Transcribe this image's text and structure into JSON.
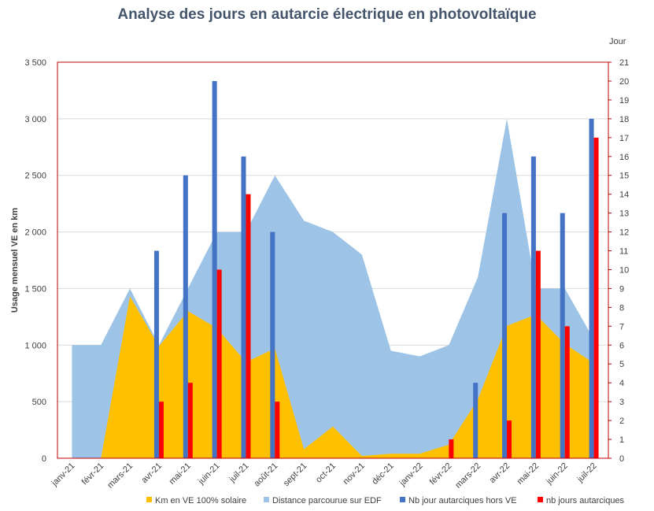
{
  "chart_data": {
    "type": "bar",
    "title": "Analyse des jours  en autarcie électrique  en photovoltaïque",
    "ylabel": "Usage  mensuel VE en km",
    "y2label": "Jour",
    "ylim": [
      0,
      3500
    ],
    "y2lim": [
      0,
      21
    ],
    "yticks": [
      "0",
      "500",
      "1 000",
      "1 500",
      "2 000",
      "2 500",
      "3 000",
      "3 500"
    ],
    "y2ticks": [
      "0",
      "1",
      "2",
      "3",
      "4",
      "5",
      "6",
      "7",
      "8",
      "9",
      "10",
      "11",
      "12",
      "13",
      "14",
      "15",
      "16",
      "17",
      "18",
      "19",
      "20",
      "21"
    ],
    "categories": [
      "janv-21",
      "févr-21",
      "mars-21",
      "avr-21",
      "mai-21",
      "juin-21",
      "juil-21",
      "août-21",
      "sept-21",
      "oct-21",
      "nov-21",
      "déc-21",
      "janv-22",
      "févr-22",
      "mars-22",
      "avr-22",
      "mai-22",
      "juin-22",
      "juil-22"
    ],
    "series": [
      {
        "name": "Km en VE 100% solaire",
        "kind": "area",
        "axis": "left",
        "color": "#ffc000",
        "values": [
          0,
          0,
          1430,
          990,
          1300,
          1150,
          850,
          970,
          80,
          280,
          20,
          40,
          40,
          120,
          520,
          1170,
          1270,
          1010,
          840
        ]
      },
      {
        "name": "Distance parcourue sur EDF",
        "kind": "area",
        "axis": "left",
        "color": "#9dc3e6",
        "values": [
          1000,
          1000,
          1500,
          1000,
          1500,
          2000,
          2000,
          2500,
          2100,
          2000,
          1800,
          950,
          900,
          1000,
          1600,
          3000,
          1500,
          1500,
          1050
        ]
      },
      {
        "name": "Nb jour autarciques hors VE",
        "kind": "bar",
        "axis": "right",
        "color": "#4472c4",
        "values": [
          0,
          0,
          0,
          11,
          15,
          20,
          16,
          12,
          0,
          0,
          0,
          0,
          0,
          0,
          4,
          13,
          16,
          13,
          18
        ]
      },
      {
        "name": "nb jours autarciques",
        "kind": "bar",
        "axis": "right",
        "color": "#ff0000",
        "values": [
          0,
          0,
          0,
          3,
          4,
          10,
          14,
          3,
          0,
          0,
          0,
          0,
          0,
          1,
          0,
          2,
          11,
          7,
          17
        ]
      }
    ],
    "legend": "bottom",
    "grid": true
  }
}
